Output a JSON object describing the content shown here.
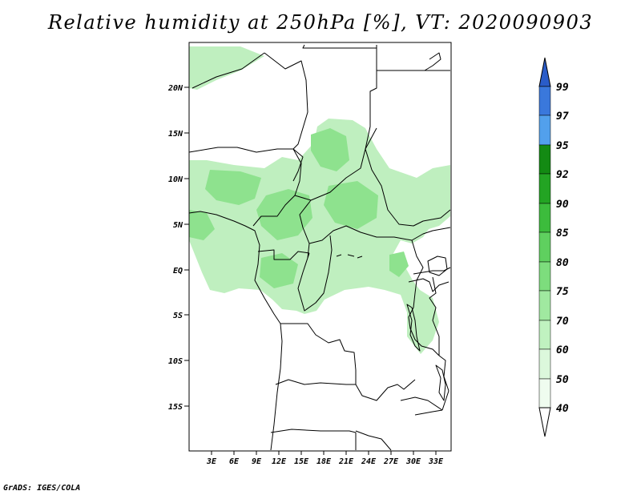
{
  "title": "Relative humidity at 250hPa [%], VT: 2020090903",
  "credit": "GrADS: IGES/COLA",
  "map": {
    "lat_labels": [
      "20N",
      "15N",
      "10N",
      "5N",
      "EQ",
      "5S",
      "10S",
      "15S"
    ],
    "lon_labels": [
      "3E",
      "6E",
      "9E",
      "12E",
      "15E",
      "18E",
      "21E",
      "24E",
      "27E",
      "30E",
      "33E"
    ]
  },
  "colorbar": {
    "levels": [
      "99",
      "97",
      "95",
      "92",
      "90",
      "85",
      "80",
      "75",
      "70",
      "60",
      "50",
      "40"
    ],
    "colors": [
      "#2a5cc8",
      "#3a78dc",
      "#52a0ec",
      "#138a13",
      "#23a423",
      "#3cbc3c",
      "#5fd05f",
      "#7ddd7d",
      "#a0e9a0",
      "#c0f2c0",
      "#dcf8dc",
      "#effcef"
    ]
  }
}
